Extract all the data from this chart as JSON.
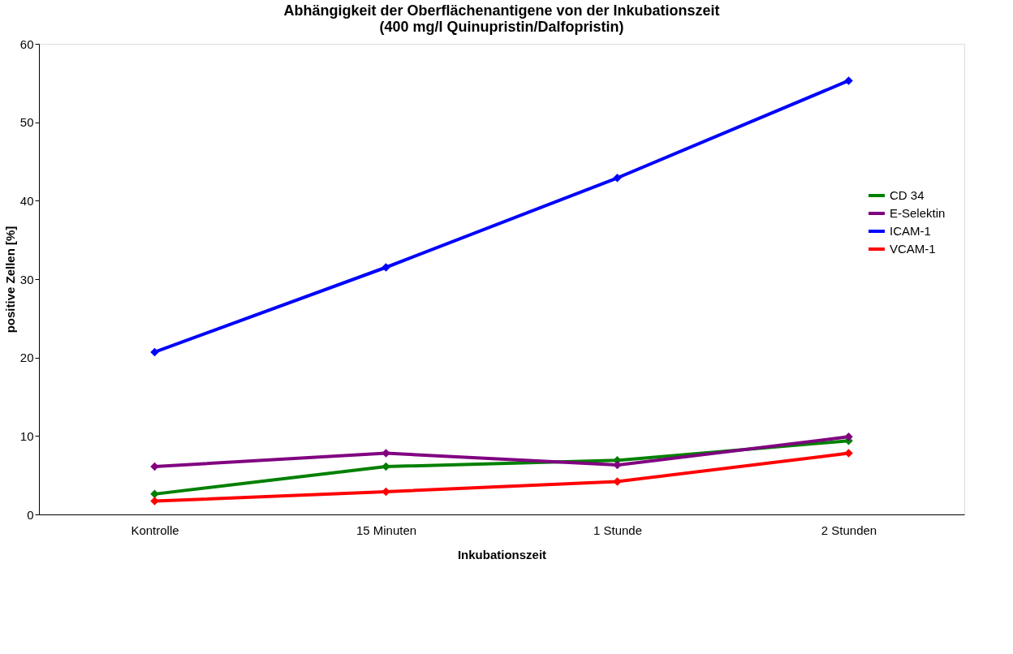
{
  "chart_data": {
    "type": "line",
    "title": [
      "Abhängigkeit der Oberflächenantigene von der Inkubationszeit",
      "(400 mg/l Quinupristin/Dalfopristin)"
    ],
    "xlabel": "Inkubationszeit",
    "ylabel": "positive Zellen [%]",
    "categories": [
      "Kontrolle",
      "15 Minuten",
      "1 Stunde",
      "2 Stunden"
    ],
    "series": [
      {
        "name": "CD 34",
        "color": "#008000",
        "values": [
          2.6,
          6.1,
          6.9,
          9.4
        ]
      },
      {
        "name": "E-Selektin",
        "color": "#800080",
        "values": [
          6.1,
          7.8,
          6.3,
          9.9
        ]
      },
      {
        "name": "ICAM-1",
        "color": "#0000ff",
        "values": [
          20.7,
          31.5,
          42.9,
          55.3
        ]
      },
      {
        "name": "VCAM-1",
        "color": "#ff0000",
        "values": [
          1.7,
          2.9,
          4.2,
          7.8
        ]
      }
    ],
    "ylim": [
      0,
      60
    ],
    "yticks": [
      0,
      10,
      20,
      30,
      40,
      50,
      60
    ],
    "grid": false,
    "legend": "right",
    "marker": "diamond",
    "line_style": "solid"
  }
}
